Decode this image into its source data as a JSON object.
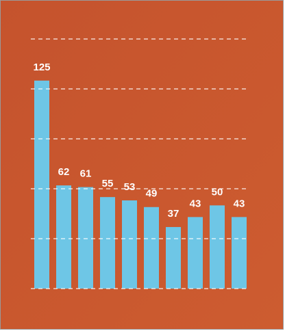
{
  "chart_data": {
    "type": "bar",
    "categories": [
      null,
      null,
      null,
      null,
      null,
      null,
      null,
      null,
      null,
      null
    ],
    "values": [
      125,
      62,
      61,
      55,
      53,
      49,
      37,
      43,
      50,
      43
    ],
    "color": "#6ec6e6",
    "ylim": [
      0,
      150
    ],
    "yticks": [
      0,
      30,
      60,
      90,
      120,
      150
    ],
    "grid": true
  }
}
